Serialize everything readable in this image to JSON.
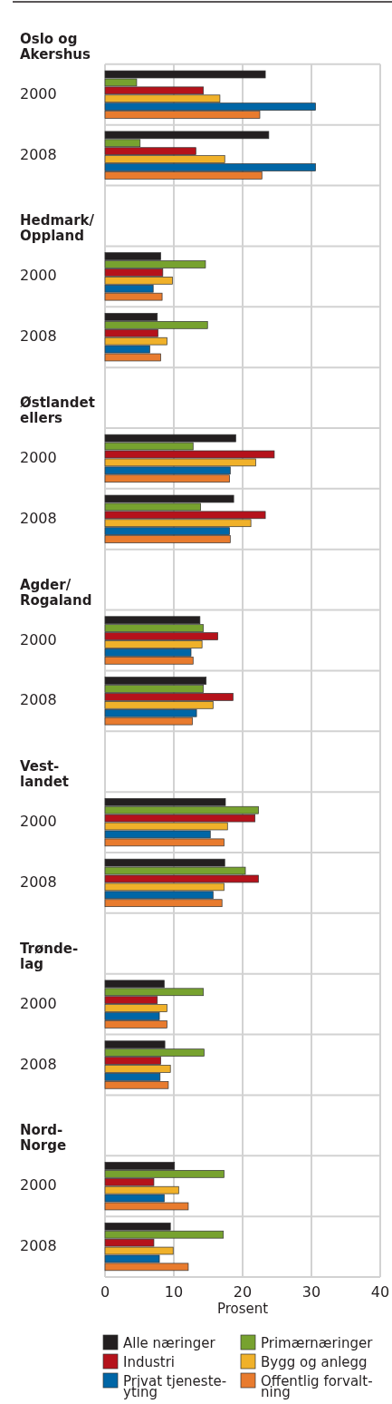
{
  "chart_data": {
    "type": "bar",
    "orientation": "horizontal",
    "xlabel": "Prosent",
    "xlim": [
      0,
      40
    ],
    "xticks": [
      0,
      10,
      20,
      30,
      40
    ],
    "grid": true,
    "legend": "bottom",
    "categories": [
      "Oslo og\nAkershus",
      "2000",
      "2008",
      "Hedmark/\nOppland",
      "2000",
      "2008",
      "Østlandet\nellers",
      "2000",
      "2008",
      "Agder/\nRogaland",
      "2000",
      "2008",
      "Vest-\nlandet",
      "2000",
      "2008",
      "Trønde-\nlag",
      "2000",
      "2008",
      "Nord-\nNorge",
      "2000",
      "2008"
    ],
    "series": [
      {
        "name": "Alle næringer",
        "color": "#231f20",
        "values": [
          null,
          23.3,
          23.8,
          null,
          8.1,
          7.6,
          null,
          19.0,
          18.7,
          null,
          13.8,
          14.7,
          null,
          17.5,
          17.4,
          null,
          8.6,
          8.7,
          null,
          10.1,
          9.5
        ]
      },
      {
        "name": "Primærnæringer",
        "color": "#77a22f",
        "values": [
          null,
          4.6,
          5.1,
          null,
          14.6,
          14.9,
          null,
          12.8,
          13.9,
          null,
          14.3,
          14.3,
          null,
          22.3,
          20.4,
          null,
          14.3,
          14.4,
          null,
          17.3,
          17.2
        ]
      },
      {
        "name": "Industri",
        "color": "#b5121b",
        "values": [
          null,
          14.3,
          13.2,
          null,
          8.4,
          7.7,
          null,
          24.6,
          23.3,
          null,
          16.4,
          18.6,
          null,
          21.8,
          22.3,
          null,
          7.6,
          8.1,
          null,
          7.1,
          7.1
        ]
      },
      {
        "name": "Bygg og anlegg",
        "color": "#f0b12a",
        "values": [
          null,
          16.7,
          17.4,
          null,
          9.8,
          9.0,
          null,
          21.9,
          21.2,
          null,
          14.1,
          15.7,
          null,
          17.8,
          17.3,
          null,
          9.0,
          9.5,
          null,
          10.7,
          9.9
        ]
      },
      {
        "name": "Privat tjeneste-\nyting",
        "color": "#0066a6",
        "values": [
          null,
          30.6,
          30.6,
          null,
          7.0,
          6.5,
          null,
          18.2,
          18.1,
          null,
          12.5,
          13.3,
          null,
          15.3,
          15.7,
          null,
          7.9,
          8.0,
          null,
          8.6,
          7.9
        ]
      },
      {
        "name": "Offentlig forvalt-\nning",
        "color": "#e87b2e",
        "values": [
          null,
          22.5,
          22.8,
          null,
          8.3,
          8.1,
          null,
          18.1,
          18.2,
          null,
          12.8,
          12.7,
          null,
          17.3,
          17.0,
          null,
          9.0,
          9.2,
          null,
          12.1,
          12.1
        ]
      }
    ]
  }
}
